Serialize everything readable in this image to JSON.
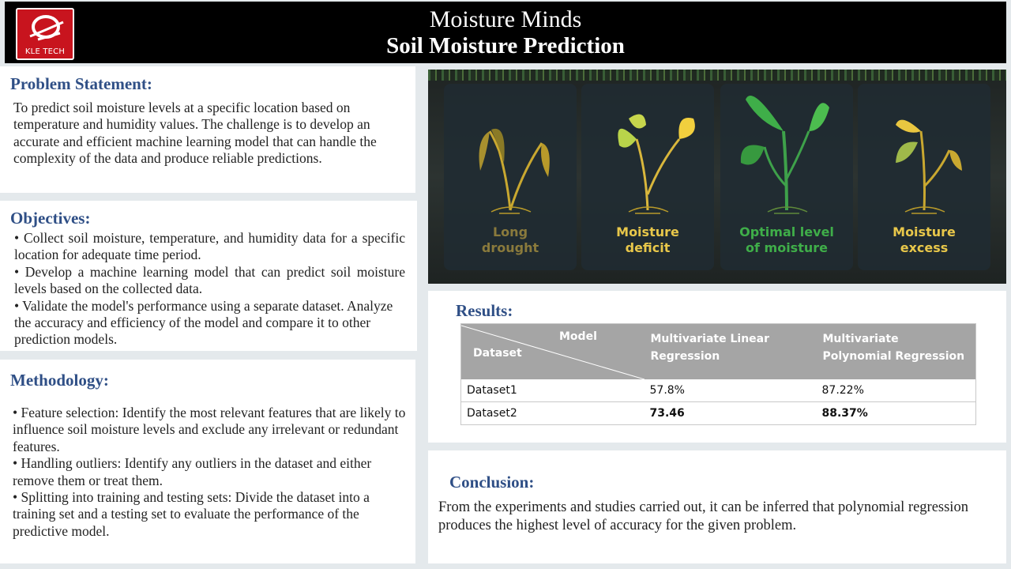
{
  "header": {
    "title": "Moisture Minds",
    "subtitle": "Soil Moisture Prediction",
    "logo_text": "KLE TECH"
  },
  "problem_statement": {
    "heading": "Problem Statement:",
    "text": "To predict soil moisture levels at a specific location based on temperature and humidity values. The challenge is to develop an accurate and efficient machine learning model that can handle the complexity of the data and produce reliable predictions."
  },
  "objectives": {
    "heading": "Objectives:",
    "items": [
      "•  Collect soil moisture, temperature, and humidity data for a specific location for adequate time period.",
      "•  Develop a machine learning model that can predict soil moisture levels based on the collected data.",
      "• Validate the model's performance using a separate dataset. Analyze the accuracy and efficiency of the model and compare it to other prediction models."
    ]
  },
  "methodology": {
    "heading": "Methodology:",
    "items": [
      "• Feature selection: Identify the most relevant features that are likely to influence soil moisture levels and exclude any irrelevant or redundant features.",
      "• Handling outliers: Identify any outliers in the dataset and either remove them or treat them.",
      "• Splitting into training and testing sets: Divide the dataset into a training set and a testing set to evaluate the performance of the predictive model."
    ]
  },
  "moisture_cards": [
    {
      "label_line1": "Long",
      "label_line2": "drought",
      "color": "#8a7a3c"
    },
    {
      "label_line1": "Moisture",
      "label_line2": "deficit",
      "color": "#e8c74a"
    },
    {
      "label_line1": "Optimal level",
      "label_line2": "of moisture",
      "color": "#3fae49"
    },
    {
      "label_line1": "Moisture",
      "label_line2": "excess",
      "color": "#e8c74a"
    }
  ],
  "results": {
    "heading": "Results:",
    "header_model": "Model",
    "header_dataset": "Dataset",
    "columns": [
      "Multivariate Linear Regression",
      "Multivariate Polynomial Regression"
    ],
    "rows": [
      {
        "dataset": "Dataset1",
        "linear": "57.8%",
        "poly": "87.22%"
      },
      {
        "dataset": "Dataset2",
        "linear": "73.46",
        "poly": "88.37%"
      }
    ]
  },
  "conclusion": {
    "heading": "Conclusion:",
    "text": "From the experiments and studies carried out, it can be inferred that polynomial regression produces the highest level of accuracy for the given problem."
  }
}
